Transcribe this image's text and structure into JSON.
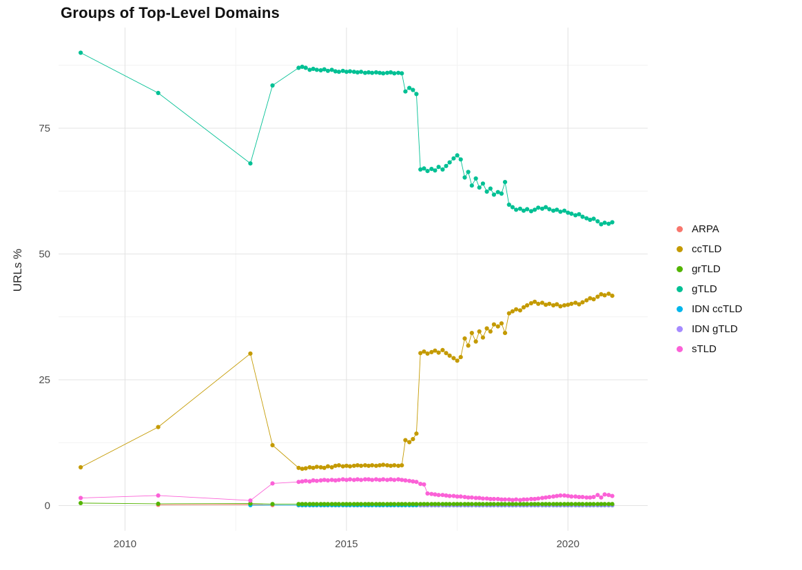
{
  "chart_data": {
    "type": "scatter",
    "title": "Groups of Top-Level Domains",
    "ylabel": "URLs %",
    "xlabel": "",
    "xlim": [
      2008.5,
      2021.8
    ],
    "ylim": [
      -5,
      95
    ],
    "x_ticks": [
      2010,
      2015,
      2020
    ],
    "x_tick_labels": [
      "2010",
      "2015",
      "2020"
    ],
    "x_minor_ticks": [
      2012.5,
      2017.5
    ],
    "y_ticks": [
      0,
      25,
      50,
      75
    ],
    "y_tick_labels": [
      "0",
      "25",
      "50",
      "75"
    ],
    "y_minor_ticks": [
      12.5,
      37.5,
      62.5,
      87.5
    ],
    "grid": true,
    "legend_position": "right",
    "draw_order": [
      "ARPA",
      "IDN ccTLD",
      "IDN gTLD",
      "grTLD",
      "sTLD",
      "ccTLD",
      "gTLD"
    ],
    "x_dense": [
      2013.92,
      2014.0,
      2014.08,
      2014.17,
      2014.25,
      2014.33,
      2014.42,
      2014.5,
      2014.58,
      2014.67,
      2014.75,
      2014.83,
      2014.92,
      2015.0,
      2015.08,
      2015.17,
      2015.25,
      2015.33,
      2015.42,
      2015.5,
      2015.58,
      2015.67,
      2015.75,
      2015.83,
      2015.92,
      2016.0,
      2016.08,
      2016.17,
      2016.25,
      2016.33,
      2016.42,
      2016.5,
      2016.58,
      2016.67,
      2016.75,
      2016.83,
      2016.92,
      2017.0,
      2017.08,
      2017.17,
      2017.25,
      2017.33,
      2017.42,
      2017.5,
      2017.58,
      2017.67,
      2017.75,
      2017.83,
      2017.92,
      2018.0,
      2018.08,
      2018.17,
      2018.25,
      2018.33,
      2018.42,
      2018.5,
      2018.58,
      2018.67,
      2018.75,
      2018.83,
      2018.92,
      2019.0,
      2019.08,
      2019.17,
      2019.25,
      2019.33,
      2019.42,
      2019.5,
      2019.58,
      2019.67,
      2019.75,
      2019.83,
      2019.92,
      2020.0,
      2020.08,
      2020.17,
      2020.25,
      2020.33,
      2020.42,
      2020.5,
      2020.58,
      2020.67,
      2020.75,
      2020.83,
      2020.92,
      2021.0
    ],
    "series": [
      {
        "name": "ARPA",
        "color": "#F8766D",
        "sparse": [
          [
            2010.75,
            0.15
          ],
          [
            2012.83,
            0.2
          ],
          [
            2013.33,
            0.1
          ]
        ],
        "y_const": 0.05
      },
      {
        "name": "ccTLD",
        "color": "#C49A00",
        "sparse": [
          [
            2009.0,
            7.6
          ],
          [
            2010.75,
            15.6
          ],
          [
            2012.83,
            30.2
          ],
          [
            2013.33,
            12.0
          ]
        ],
        "y_dense": [
          7.5,
          7.3,
          7.4,
          7.6,
          7.5,
          7.7,
          7.6,
          7.5,
          7.8,
          7.6,
          7.9,
          8.0,
          7.8,
          7.9,
          7.8,
          7.9,
          8.0,
          7.9,
          8.0,
          7.9,
          8.0,
          7.9,
          8.0,
          8.1,
          8.0,
          7.9,
          8.0,
          7.9,
          8.0,
          13.0,
          12.6,
          13.2,
          14.3,
          30.3,
          30.6,
          30.2,
          30.5,
          30.8,
          30.4,
          30.9,
          30.3,
          29.8,
          29.3,
          28.8,
          29.5,
          33.2,
          31.8,
          34.3,
          32.6,
          34.6,
          33.4,
          35.2,
          34.6,
          36.0,
          35.6,
          36.2,
          34.3,
          38.2,
          38.6,
          39.0,
          38.8,
          39.4,
          39.8,
          40.2,
          40.5,
          40.1,
          40.3,
          39.9,
          40.1,
          39.8,
          40.0,
          39.6,
          39.8,
          39.9,
          40.1,
          40.3,
          40.0,
          40.4,
          40.8,
          41.2,
          41.0,
          41.5,
          42.0,
          41.8,
          42.1,
          41.7
        ]
      },
      {
        "name": "grTLD",
        "color": "#53B400",
        "sparse": [
          [
            2009.0,
            0.5
          ],
          [
            2010.75,
            0.35
          ],
          [
            2012.83,
            0.4
          ],
          [
            2013.33,
            0.3
          ]
        ],
        "y_const": 0.3
      },
      {
        "name": "gTLD",
        "color": "#00C094",
        "sparse": [
          [
            2009.0,
            90.0
          ],
          [
            2010.75,
            82.0
          ],
          [
            2012.83,
            68.0
          ],
          [
            2013.33,
            83.5
          ]
        ],
        "y_dense": [
          87.0,
          87.2,
          87.0,
          86.6,
          86.8,
          86.6,
          86.5,
          86.7,
          86.4,
          86.6,
          86.3,
          86.2,
          86.4,
          86.2,
          86.3,
          86.2,
          86.1,
          86.2,
          86.0,
          86.1,
          86.0,
          86.1,
          86.0,
          85.9,
          86.0,
          86.1,
          85.9,
          86.0,
          85.9,
          82.3,
          83.0,
          82.6,
          81.8,
          66.8,
          67.0,
          66.5,
          66.9,
          66.6,
          67.3,
          66.8,
          67.5,
          68.2,
          69.0,
          69.6,
          68.8,
          65.2,
          66.3,
          63.6,
          65.0,
          63.2,
          64.0,
          62.4,
          63.0,
          61.8,
          62.3,
          62.0,
          64.3,
          59.8,
          59.3,
          58.8,
          59.0,
          58.6,
          58.9,
          58.5,
          58.8,
          59.2,
          59.0,
          59.3,
          58.9,
          58.6,
          58.8,
          58.4,
          58.6,
          58.2,
          58.0,
          57.7,
          57.9,
          57.4,
          57.1,
          56.8,
          57.0,
          56.5,
          55.9,
          56.2,
          56.0,
          56.3
        ]
      },
      {
        "name": "IDN ccTLD",
        "color": "#00B6EB",
        "sparse": [
          [
            2012.83,
            0.08
          ]
        ],
        "y_const": 0.08
      },
      {
        "name": "IDN gTLD",
        "color": "#A58AFF",
        "sparse": [],
        "y_const": 0.12,
        "x_start": 2016.67
      },
      {
        "name": "sTLD",
        "color": "#FB61D7",
        "sparse": [
          [
            2009.0,
            1.5
          ],
          [
            2010.75,
            2.0
          ],
          [
            2012.83,
            1.0
          ],
          [
            2013.33,
            4.4
          ]
        ],
        "y_dense": [
          4.7,
          4.8,
          4.9,
          4.8,
          5.0,
          4.9,
          5.0,
          5.1,
          5.0,
          5.1,
          5.0,
          5.1,
          5.2,
          5.1,
          5.2,
          5.1,
          5.2,
          5.1,
          5.2,
          5.2,
          5.1,
          5.2,
          5.1,
          5.2,
          5.1,
          5.2,
          5.1,
          5.2,
          5.1,
          5.0,
          4.9,
          4.8,
          4.7,
          4.3,
          4.2,
          2.4,
          2.3,
          2.2,
          2.1,
          2.1,
          2.0,
          1.9,
          1.9,
          1.8,
          1.8,
          1.7,
          1.6,
          1.6,
          1.5,
          1.5,
          1.4,
          1.4,
          1.3,
          1.3,
          1.3,
          1.2,
          1.2,
          1.2,
          1.1,
          1.2,
          1.1,
          1.2,
          1.2,
          1.3,
          1.3,
          1.4,
          1.5,
          1.6,
          1.7,
          1.8,
          1.9,
          2.0,
          2.0,
          1.9,
          1.8,
          1.8,
          1.7,
          1.7,
          1.6,
          1.6,
          1.7,
          2.1,
          1.6,
          2.2,
          2.1,
          1.9
        ]
      }
    ]
  }
}
